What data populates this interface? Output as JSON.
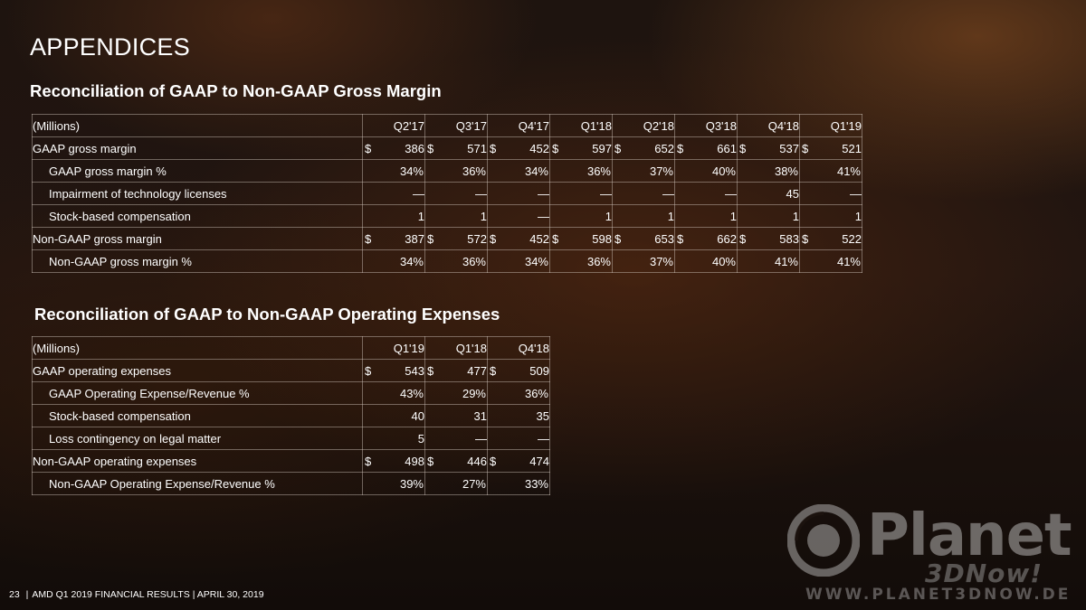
{
  "slide": {
    "title": "APPENDICES",
    "footer": {
      "page_number": "23",
      "separator": "|",
      "text": "AMD Q1 2019 FINANCIAL RESULTS |  APRIL 30, 2019"
    }
  },
  "gross_margin": {
    "title": "Reconciliation of GAAP to Non-GAAP Gross Margin",
    "header_label": "(Millions)",
    "columns": [
      "Q2'17",
      "Q3'17",
      "Q4'17",
      "Q1'18",
      "Q2'18",
      "Q3'18",
      "Q4'18",
      "Q1'19"
    ],
    "rows": [
      {
        "label": "GAAP gross margin",
        "currency": "$",
        "values": [
          "386",
          "571",
          "452",
          "597",
          "652",
          "661",
          "537",
          "521"
        ]
      },
      {
        "label": "GAAP gross margin %",
        "values": [
          "34%",
          "36%",
          "34%",
          "36%",
          "37%",
          "40%",
          "38%",
          "41%"
        ]
      },
      {
        "label": "Impairment of technology licenses",
        "values": [
          "—",
          "—",
          "—",
          "—",
          "—",
          "—",
          "45",
          "—"
        ]
      },
      {
        "label": "Stock-based compensation",
        "values": [
          "1",
          "1",
          "—",
          "1",
          "1",
          "1",
          "1",
          "1"
        ]
      },
      {
        "label": "Non-GAAP gross margin",
        "currency": "$",
        "values": [
          "387",
          "572",
          "452",
          "598",
          "653",
          "662",
          "583",
          "522"
        ]
      },
      {
        "label": "Non-GAAP gross margin %",
        "values": [
          "34%",
          "36%",
          "34%",
          "36%",
          "37%",
          "40%",
          "41%",
          "41%"
        ]
      }
    ]
  },
  "operating_expenses": {
    "title": "Reconciliation of GAAP to Non-GAAP Operating Expenses",
    "header_label": "(Millions)",
    "columns": [
      "Q1'19",
      "Q1'18",
      "Q4'18"
    ],
    "rows": [
      {
        "label": "GAAP operating expenses",
        "currency": "$",
        "values": [
          "543",
          "477",
          "509"
        ]
      },
      {
        "label": "GAAP Operating Expense/Revenue %",
        "values": [
          "43%",
          "29%",
          "36%"
        ]
      },
      {
        "label": "Stock-based compensation",
        "values": [
          "40",
          "31",
          "35"
        ]
      },
      {
        "label": "Loss contingency on legal matter",
        "values": [
          "5",
          "—",
          "—"
        ]
      },
      {
        "label": "Non-GAAP operating expenses",
        "currency": "$",
        "values": [
          "498",
          "446",
          "474"
        ]
      },
      {
        "label": "Non-GAAP Operating Expense/Revenue %",
        "values": [
          "39%",
          "27%",
          "33%"
        ]
      }
    ]
  },
  "watermark": {
    "brand": "Planet",
    "sub_brand": "3DNow!",
    "url": "WWW.PLANET3DNOW.DE"
  }
}
